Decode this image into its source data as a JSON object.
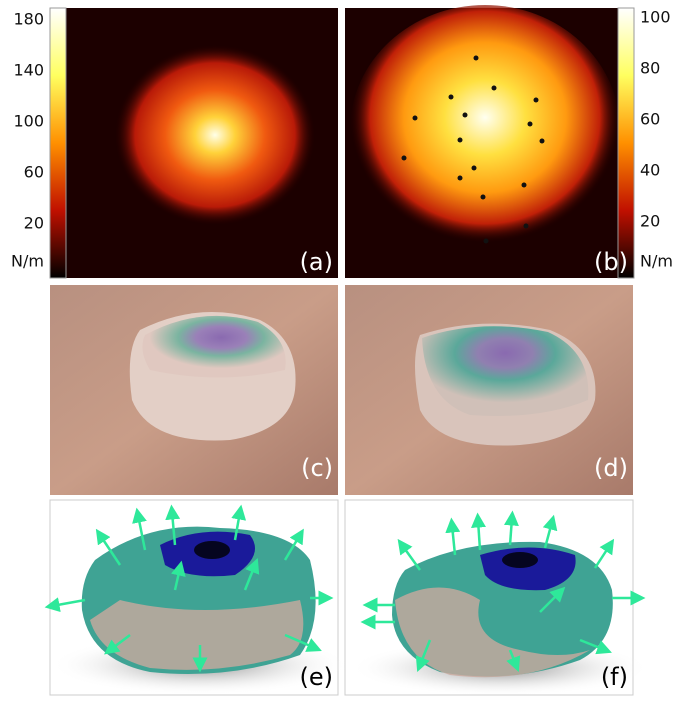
{
  "colorbars": [
    {
      "ticks": [
        180,
        140,
        100,
        60,
        20
      ],
      "unit": "N/m"
    },
    {
      "ticks": [
        100,
        80,
        60,
        40,
        20
      ],
      "unit": "N/m"
    }
  ],
  "panels": [
    "(a)",
    "(b)",
    "(c)",
    "(d)",
    "(e)",
    "(f)"
  ]
}
